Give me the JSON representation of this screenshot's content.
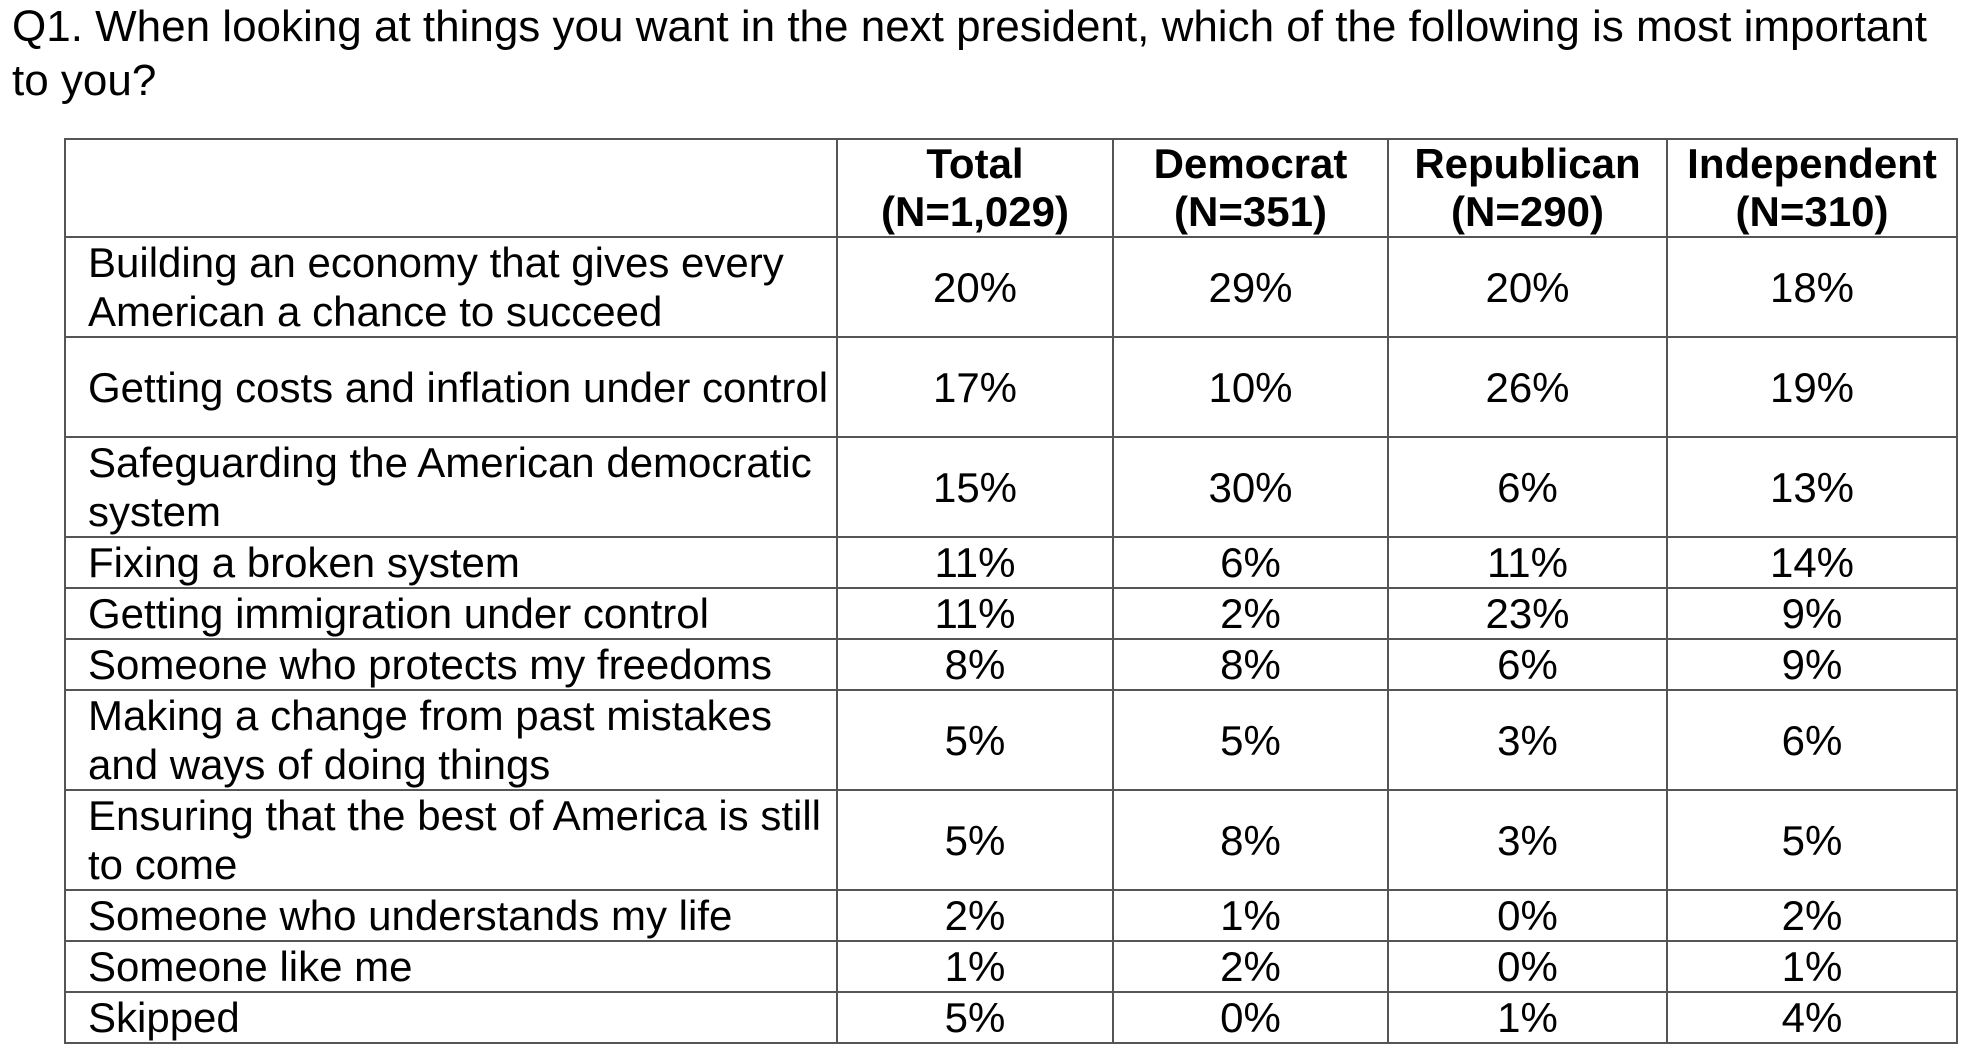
{
  "question": "Q1. When looking at things you want in the next president, which of the following is most important to you?",
  "columns": [
    {
      "name": "Total",
      "n": "(N=1,029)"
    },
    {
      "name": "Democrat",
      "n": "(N=351)"
    },
    {
      "name": "Republican",
      "n": "(N=290)"
    },
    {
      "name": "Independent",
      "n": "(N=310)"
    }
  ],
  "rows": [
    {
      "label": "Building an economy that gives every American a chance to succeed",
      "values": [
        "20%",
        "29%",
        "20%",
        "18%"
      ]
    },
    {
      "label": "Getting costs and inflation under control",
      "values": [
        "17%",
        "10%",
        "26%",
        "19%"
      ]
    },
    {
      "label": "Safeguarding the American democratic system",
      "values": [
        "15%",
        "30%",
        "6%",
        "13%"
      ]
    },
    {
      "label": "Fixing a broken system",
      "values": [
        "11%",
        "6%",
        "11%",
        "14%"
      ]
    },
    {
      "label": "Getting immigration under control",
      "values": [
        "11%",
        "2%",
        "23%",
        "9%"
      ]
    },
    {
      "label": "Someone who protects my freedoms",
      "values": [
        "8%",
        "8%",
        "6%",
        "9%"
      ]
    },
    {
      "label": "Making a change from past mistakes and ways of doing things",
      "values": [
        "5%",
        "5%",
        "3%",
        "6%"
      ]
    },
    {
      "label": "Ensuring that the best of America is still to come",
      "values": [
        "5%",
        "8%",
        "3%",
        "5%"
      ]
    },
    {
      "label": "Someone who understands my life",
      "values": [
        "2%",
        "1%",
        "0%",
        "2%"
      ]
    },
    {
      "label": "Someone like me",
      "values": [
        "1%",
        "2%",
        "0%",
        "1%"
      ]
    },
    {
      "label": "Skipped",
      "values": [
        "5%",
        "0%",
        "1%",
        "4%"
      ]
    }
  ]
}
